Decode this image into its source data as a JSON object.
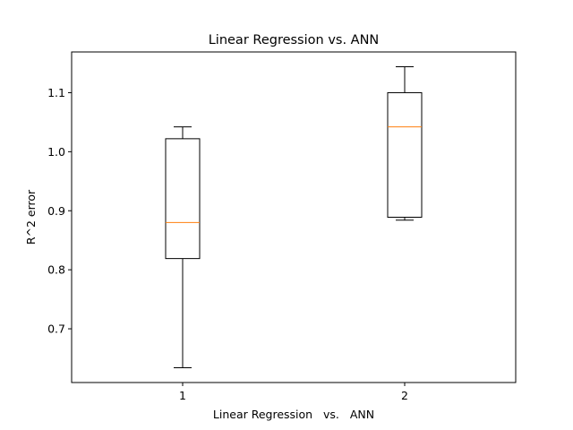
{
  "chart_data": {
    "type": "boxplot",
    "title": "Linear Regression vs. ANN",
    "xlabel": "Linear Regression   vs.   ANN",
    "ylabel": "R^2 error",
    "categories": [
      "1",
      "2"
    ],
    "boxes": [
      {
        "label": "1",
        "whisker_low": 0.634,
        "q1": 0.819,
        "median": 0.88,
        "q3": 1.022,
        "whisker_high": 1.042
      },
      {
        "label": "2",
        "whisker_low": 0.884,
        "q1": 0.889,
        "median": 1.042,
        "q3": 1.1,
        "whisker_high": 1.144
      }
    ],
    "xlim": [
      0.5,
      2.5
    ],
    "ylim": [
      0.609,
      1.169
    ],
    "yticks": [
      0.7,
      0.8,
      0.9,
      1.0,
      1.1
    ],
    "ytick_labels": [
      "0.7",
      "0.8",
      "0.9",
      "1.0",
      "1.1"
    ],
    "grid": false,
    "colors": {
      "box": "#000000",
      "median": "#ff7f0e",
      "axes": "#000000",
      "background": "#ffffff"
    }
  }
}
